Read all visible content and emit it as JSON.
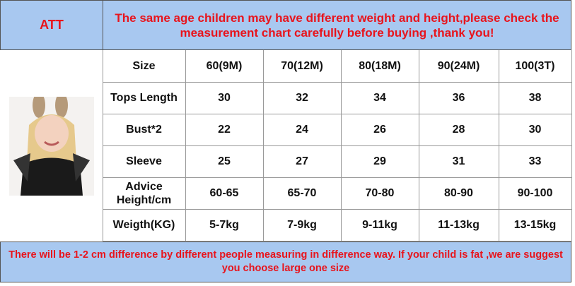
{
  "header": {
    "brand": "ATT",
    "notice": "The same age children may have different weight and height,please check the measurement chart carefully before buying ,thank you!"
  },
  "table": {
    "rows": [
      [
        "Size",
        "60(9M)",
        "70(12M)",
        "80(18M)",
        "90(24M)",
        "100(3T)"
      ],
      [
        "Tops Length",
        "30",
        "32",
        "34",
        "36",
        "38"
      ],
      [
        "Bust*2",
        "22",
        "24",
        "26",
        "28",
        "30"
      ],
      [
        "Sleeve",
        "25",
        "27",
        "29",
        "31",
        "33"
      ],
      [
        "Advice Height/cm",
        "60-65",
        "65-70",
        "70-80",
        "80-90",
        "90-100"
      ],
      [
        "Weigth(KG)",
        "5-7kg",
        "7-9kg",
        "9-11kg",
        "11-13kg",
        "13-15kg"
      ]
    ]
  },
  "footer": {
    "note": "There will be 1-2 cm difference by different people measuring in difference way. If your child is fat ,we are suggest you choose large one size"
  }
}
